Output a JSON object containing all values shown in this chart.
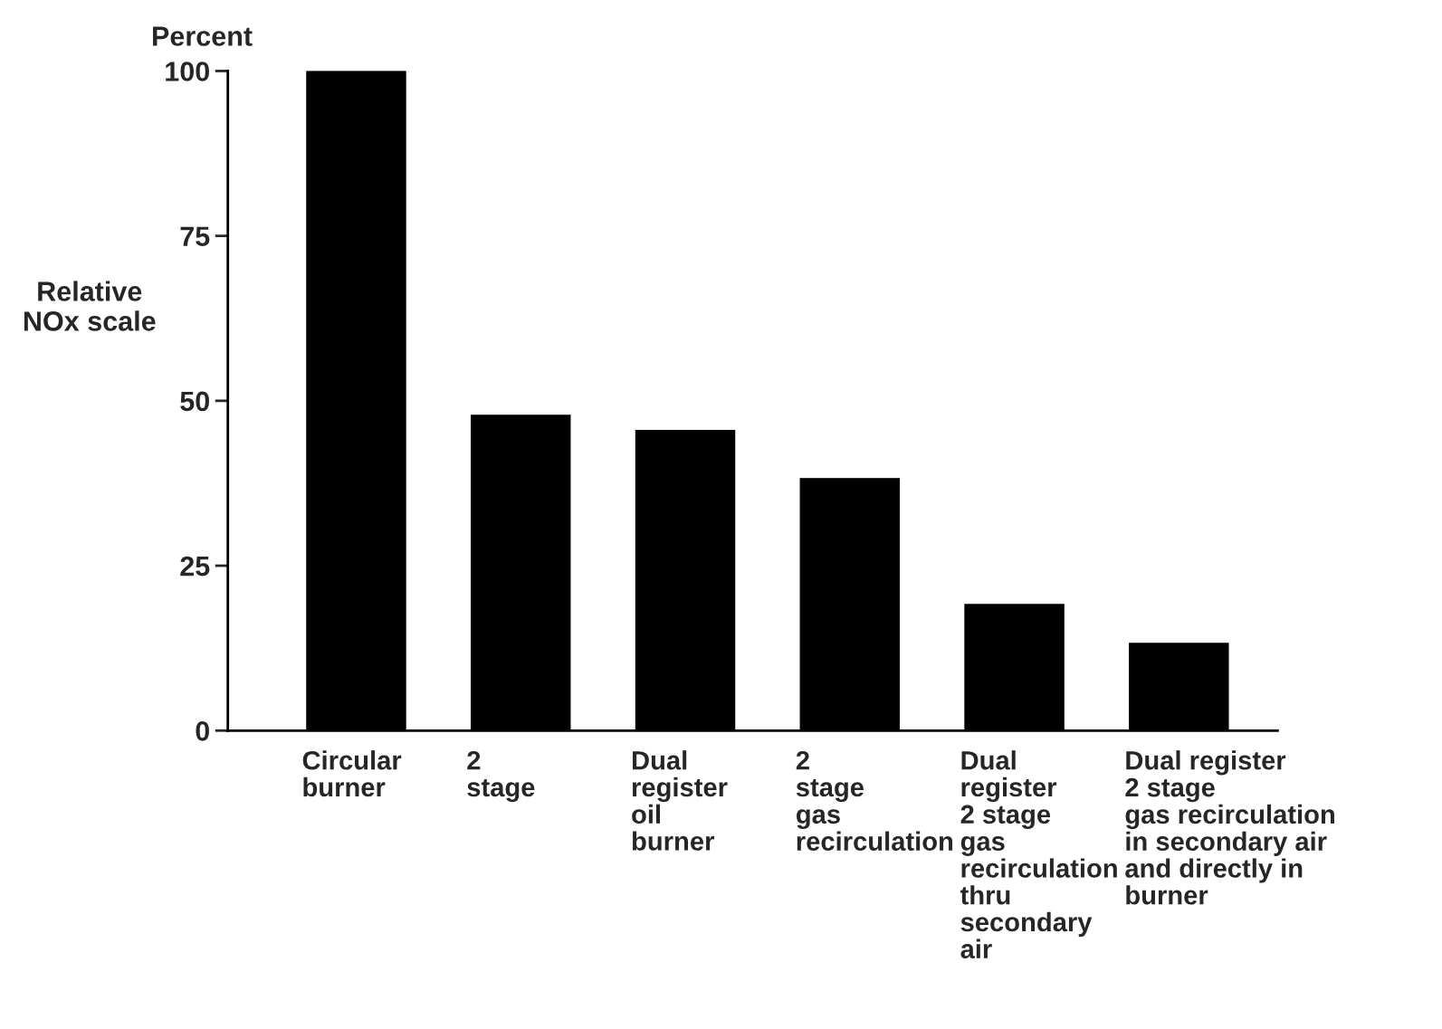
{
  "chart_data": {
    "type": "bar",
    "title": "Percent",
    "ylabel": "Relative\nNOx scale",
    "categories": [
      "Circular\nburner",
      "2\nstage",
      "Dual\nregister\noil\nburner",
      "2\nstage\ngas\nrecirculation",
      "Dual\nregister\n2 stage\ngas\nrecirculation\nthru\nsecondary\nair",
      "Dual register\n2 stage\ngas recirculation\nin secondary air\nand directly in\nburner"
    ],
    "values": [
      100,
      47.8,
      45.5,
      38.2,
      19.1,
      13.2
    ],
    "color": "#000000",
    "ylim": [
      0,
      100
    ],
    "yticks": [
      0,
      25,
      50,
      75,
      100
    ],
    "grid": false,
    "legend": false
  }
}
